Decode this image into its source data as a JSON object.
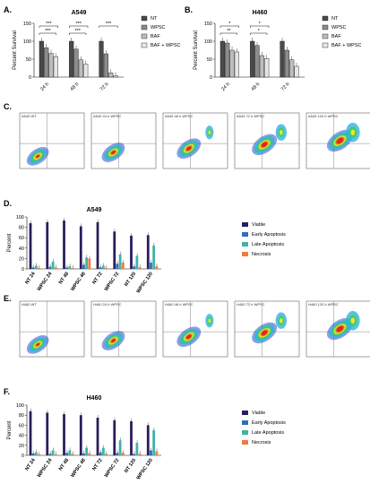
{
  "panel_letters": [
    "A.",
    "B.",
    "C.",
    "D.",
    "E.",
    "F."
  ],
  "colors": {
    "nt": "#4a4a4a",
    "wpsc": "#8c8c8c",
    "baf": "#bdbdbd",
    "baf_wpsc": "#e6e6e6",
    "viable": "#2b1d5c",
    "early": "#2f6fb6",
    "late": "#3fb3a8",
    "necrosis": "#f07a3a"
  },
  "flow_labels": {
    "c": [
      "A549 WT",
      "A549 24 h WPSC",
      "A549 48 h WPSC",
      "A549 72 h WPSC",
      "A549 120 h WPSC"
    ],
    "e": [
      "H460 WT",
      "H460 24 h WPSC",
      "H460 48 h WPSC",
      "H460 72 h WPSC",
      "H460 120 h WPSC"
    ]
  },
  "chart_data": [
    {
      "id": "A",
      "type": "bar",
      "title": "A549",
      "ylabel": "Percent Survival",
      "ylim": [
        0,
        150
      ],
      "yticks": [
        0,
        50,
        100,
        150
      ],
      "categories": [
        "24 h",
        "48 h",
        "72 h"
      ],
      "series": [
        {
          "name": "NT",
          "values": [
            100,
            100,
            100
          ]
        },
        {
          "name": "WPSC",
          "values": [
            82,
            78,
            65
          ]
        },
        {
          "name": "BAF",
          "values": [
            66,
            48,
            12
          ]
        },
        {
          "name": "BAF + WPSC",
          "values": [
            57,
            36,
            4
          ]
        }
      ],
      "annotations": [
        "***",
        "***",
        "***",
        "***",
        "***"
      ]
    },
    {
      "id": "B",
      "type": "bar",
      "title": "H460",
      "ylabel": "Percent Survival",
      "ylim": [
        0,
        150
      ],
      "yticks": [
        0,
        50,
        100,
        150
      ],
      "categories": [
        "24 h",
        "48 h",
        "72 h"
      ],
      "series": [
        {
          "name": "NT",
          "values": [
            100,
            100,
            100
          ]
        },
        {
          "name": "WPSC",
          "values": [
            95,
            88,
            75
          ]
        },
        {
          "name": "BAF",
          "values": [
            75,
            60,
            48
          ]
        },
        {
          "name": "BAF + WPSC",
          "values": [
            70,
            52,
            30
          ]
        }
      ],
      "annotations": [
        "*",
        "**",
        "*",
        "*"
      ]
    },
    {
      "id": "D",
      "type": "bar",
      "title": "A549",
      "ylabel": "Percent",
      "ylim": [
        0,
        100
      ],
      "yticks": [
        0,
        20,
        40,
        60,
        80,
        100
      ],
      "categories": [
        "NT 24",
        "WPSC 24",
        "NT 48",
        "WPSC 48",
        "NT 72",
        "WPSC 72",
        "NT 120",
        "WPSC 120"
      ],
      "series": [
        {
          "name": "Viable",
          "values": [
            88,
            90,
            93,
            82,
            90,
            72,
            64,
            65
          ]
        },
        {
          "name": "Early Apoptosis",
          "values": [
            3,
            4,
            3,
            8,
            3,
            10,
            5,
            12
          ]
        },
        {
          "name": "Late Apoptosis",
          "values": [
            6,
            14,
            5,
            22,
            6,
            28,
            25,
            45
          ]
        },
        {
          "name": "Necrosis",
          "values": [
            2,
            3,
            2,
            20,
            2,
            12,
            3,
            5
          ]
        }
      ]
    },
    {
      "id": "F",
      "type": "bar",
      "title": "H460",
      "ylabel": "Percent",
      "ylim": [
        0,
        100
      ],
      "yticks": [
        0,
        20,
        40,
        60,
        80,
        100
      ],
      "categories": [
        "NT 24",
        "WPSC 24",
        "NT 48",
        "WPSC 48",
        "NT 72",
        "WPSC 72",
        "NT 120",
        "WPSC 120"
      ],
      "series": [
        {
          "name": "Viable",
          "values": [
            88,
            85,
            82,
            80,
            75,
            70,
            68,
            60
          ]
        },
        {
          "name": "Early Apoptosis",
          "values": [
            4,
            3,
            5,
            4,
            6,
            5,
            3,
            10
          ]
        },
        {
          "name": "Late Apoptosis",
          "values": [
            6,
            10,
            10,
            15,
            15,
            30,
            25,
            50
          ]
        },
        {
          "name": "Necrosis",
          "values": [
            2,
            2,
            3,
            4,
            3,
            5,
            3,
            8
          ]
        }
      ]
    }
  ]
}
